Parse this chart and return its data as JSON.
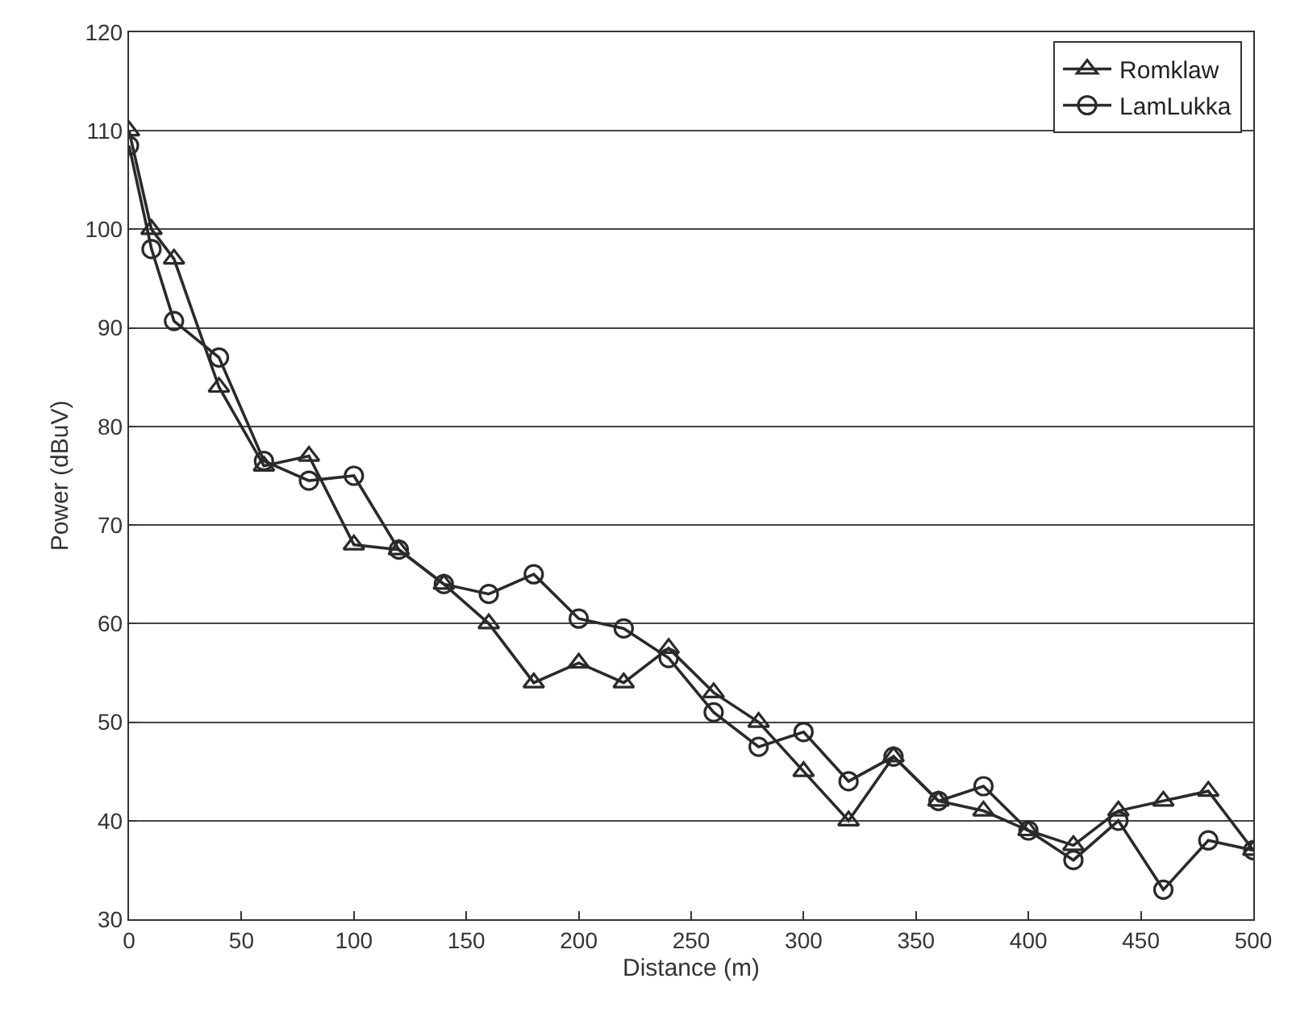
{
  "chart_data": {
    "type": "line",
    "xlabel": "Distance (m)",
    "ylabel": "Power (dBuV)",
    "x": [
      0,
      10,
      20,
      40,
      60,
      80,
      100,
      120,
      140,
      160,
      180,
      200,
      220,
      240,
      260,
      280,
      300,
      320,
      340,
      360,
      380,
      400,
      420,
      440,
      460,
      480,
      500
    ],
    "series": [
      {
        "name": "Romklaw",
        "color": "#2a2a2a",
        "marker": "triangle",
        "values": [
          110,
          100,
          97,
          84,
          76,
          77,
          68,
          67.5,
          64,
          60,
          54,
          56,
          54,
          57.5,
          53,
          50,
          45,
          40,
          46.5,
          42,
          41,
          39,
          37.5,
          41,
          42,
          43,
          37
        ]
      },
      {
        "name": "LamLukka",
        "color": "#2a2a2a",
        "marker": "circle",
        "values": [
          108.5,
          98,
          90.7,
          87,
          76.5,
          74.5,
          75,
          67.5,
          64,
          63,
          65,
          60.5,
          59.5,
          56.5,
          51,
          47.5,
          49,
          44,
          46.5,
          42,
          43.5,
          39,
          36,
          40,
          33,
          38,
          37
        ]
      }
    ],
    "xlim": [
      0,
      500
    ],
    "xticks": [
      0,
      50,
      100,
      150,
      200,
      250,
      300,
      350,
      400,
      450,
      500
    ],
    "ylim": [
      30,
      120
    ],
    "yticks": [
      30,
      40,
      50,
      60,
      70,
      80,
      90,
      100,
      110,
      120
    ],
    "grid": "y",
    "legend": "top right",
    "line_style": "solid"
  }
}
